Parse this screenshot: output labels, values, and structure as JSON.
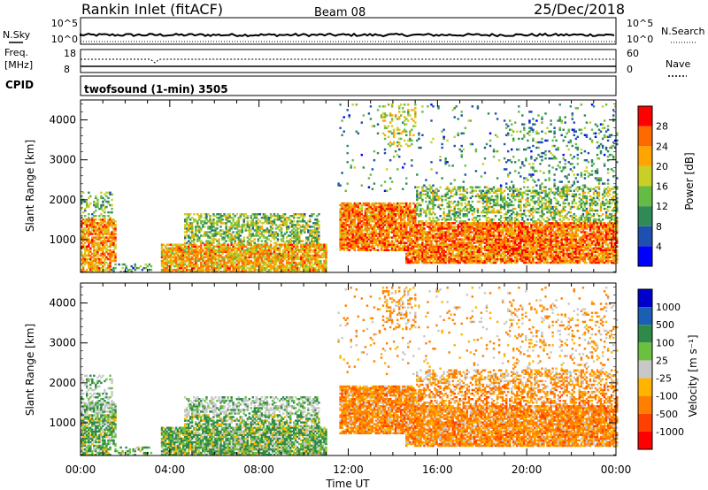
{
  "header": {
    "station": "Rankin Inlet (fitACF)",
    "beam": "Beam 08",
    "date": "25/Dec/2018"
  },
  "nsky_panel": {
    "left_label": "N.Sky",
    "right_label": "N.Search",
    "left_ticks": [
      "10^5",
      "10^0"
    ],
    "right_ticks": [
      "10^5",
      "10^0"
    ]
  },
  "freq_panel": {
    "left_label_1": "Freq.",
    "left_label_2": "[MHz]",
    "left_ticks": [
      "18",
      "8"
    ],
    "right_label": "Nave",
    "right_ticks": [
      "60",
      "0"
    ]
  },
  "cpid_panel": {
    "label": "CPID",
    "program": "twofsound (1-min) 3505"
  },
  "chart_data": [
    {
      "type": "heatmap",
      "name": "power",
      "ylabel": "Slant Range [km]",
      "xlabel": "",
      "x_ticks": [],
      "y_ticks": [
        "1000",
        "2000",
        "3000",
        "4000"
      ],
      "ylim": [
        180,
        4500
      ],
      "xlim": [
        0,
        24
      ],
      "colorbar": {
        "label": "Power [dB]",
        "ticks": [
          "4",
          "8",
          "12",
          "16",
          "20",
          "24",
          "28"
        ],
        "colors": [
          "#0000ff",
          "#1f4fb0",
          "#2e8b57",
          "#66bb44",
          "#c8d028",
          "#ffa400",
          "#ff6a00",
          "#ff0000"
        ]
      }
    },
    {
      "type": "heatmap",
      "name": "velocity",
      "ylabel": "Slant Range [km]",
      "xlabel": "Time UT",
      "x_ticks": [
        "00:00",
        "04:00",
        "08:00",
        "12:00",
        "16:00",
        "20:00",
        "00:00"
      ],
      "y_ticks": [
        "1000",
        "2000",
        "3000",
        "4000"
      ],
      "ylim": [
        180,
        4500
      ],
      "xlim": [
        0,
        24
      ],
      "colorbar": {
        "label": "Velocity [m s⁻¹]",
        "ticks": [
          "1000",
          "500",
          "100",
          "25",
          "-25",
          "-100",
          "-500",
          "-1000"
        ],
        "colors": [
          "#0000cc",
          "#1a5fb4",
          "#2f8a4a",
          "#6cc040",
          "#c8c8c8",
          "#ffb400",
          "#ff8000",
          "#ff4000",
          "#ff0000"
        ]
      }
    }
  ]
}
